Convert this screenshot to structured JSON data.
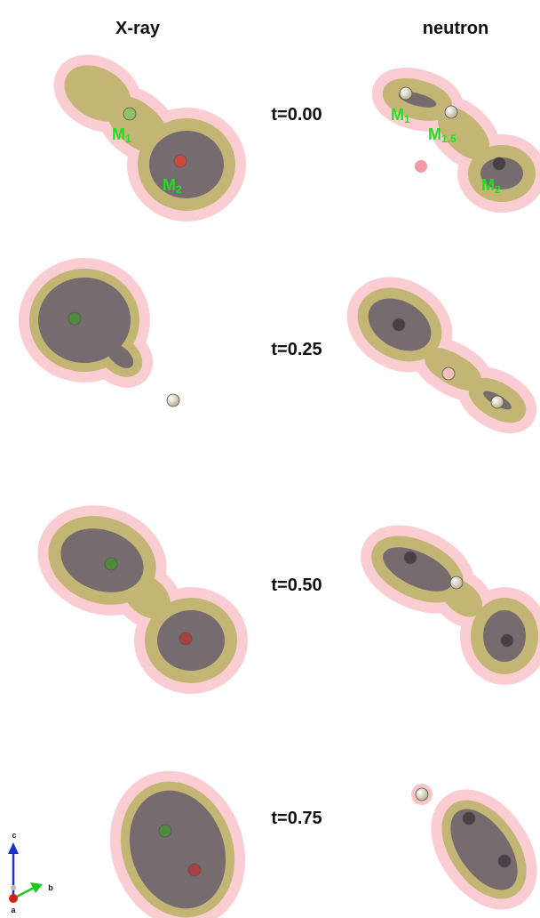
{
  "columns": [
    "X-ray",
    "neutron"
  ],
  "rows": [
    "t=0.00",
    "t=0.25",
    "t=0.50",
    "t=0.75"
  ],
  "atom_labels": [
    {
      "text": "M",
      "sub": "1"
    },
    {
      "text": "M",
      "sub": "2"
    },
    {
      "text": "M",
      "sub": "1"
    },
    {
      "text": "M",
      "sub": "1.5"
    },
    {
      "text": "M",
      "sub": "2"
    }
  ],
  "axes": [
    "c",
    "b",
    "a"
  ]
}
